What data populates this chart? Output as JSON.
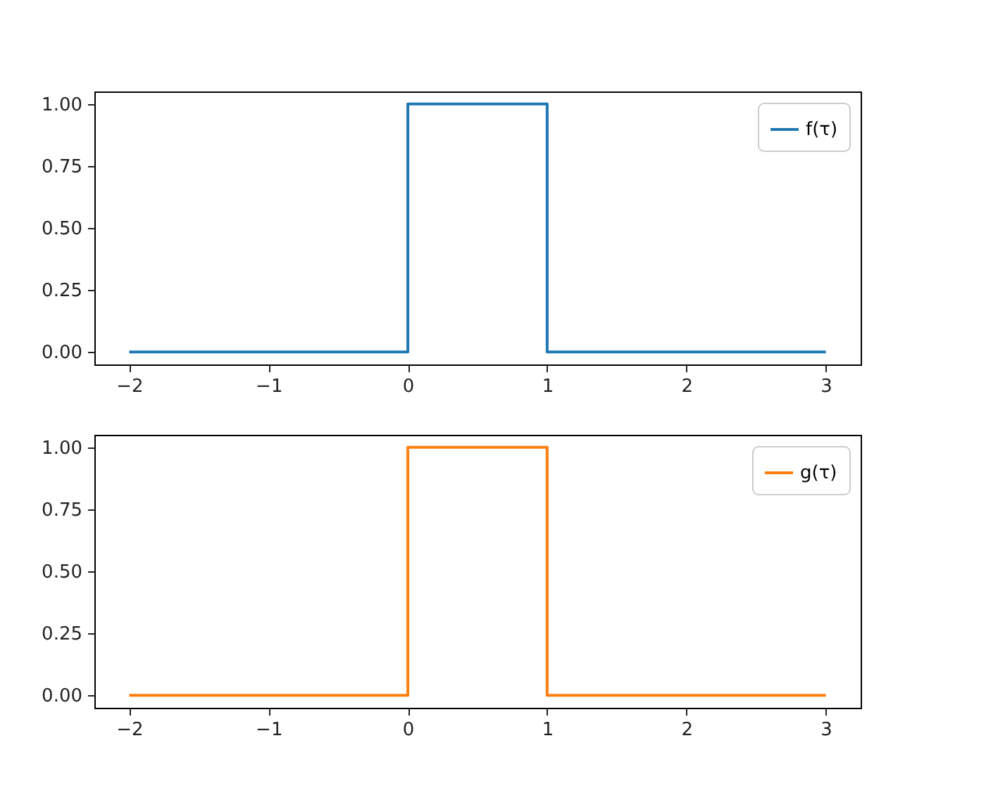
{
  "chart_data": [
    {
      "type": "line",
      "x": [
        -2,
        0,
        0,
        1,
        1,
        3
      ],
      "series": [
        {
          "name": "f(τ)",
          "color": "#1f77b4",
          "values": [
            0,
            0,
            1,
            1,
            0,
            0
          ]
        }
      ],
      "xlim": [
        -2.25,
        3.25
      ],
      "ylim": [
        -0.05,
        1.05
      ],
      "xticks": [
        -2,
        -1,
        0,
        1,
        2,
        3
      ],
      "yticks": [
        {
          "value": 0,
          "label": "0.00"
        },
        {
          "value": 0.25,
          "label": "0.25"
        },
        {
          "value": 0.5,
          "label": "0.50"
        },
        {
          "value": 0.75,
          "label": "0.75"
        },
        {
          "value": 1,
          "label": "1.00"
        }
      ],
      "grid": false,
      "legend": "top right"
    },
    {
      "type": "line",
      "x": [
        -2,
        0,
        0,
        1,
        1,
        3
      ],
      "series": [
        {
          "name": "g(τ)",
          "color": "#ff7f0e",
          "values": [
            0,
            0,
            1,
            1,
            0,
            0
          ]
        }
      ],
      "xlim": [
        -2.25,
        3.25
      ],
      "ylim": [
        -0.05,
        1.05
      ],
      "xticks": [
        -2,
        -1,
        0,
        1,
        2,
        3
      ],
      "yticks": [
        {
          "value": 0,
          "label": "0.00"
        },
        {
          "value": 0.25,
          "label": "0.25"
        },
        {
          "value": 0.5,
          "label": "0.50"
        },
        {
          "value": 0.75,
          "label": "0.75"
        },
        {
          "value": 1,
          "label": "1.00"
        }
      ],
      "grid": false,
      "legend": "top right"
    }
  ]
}
